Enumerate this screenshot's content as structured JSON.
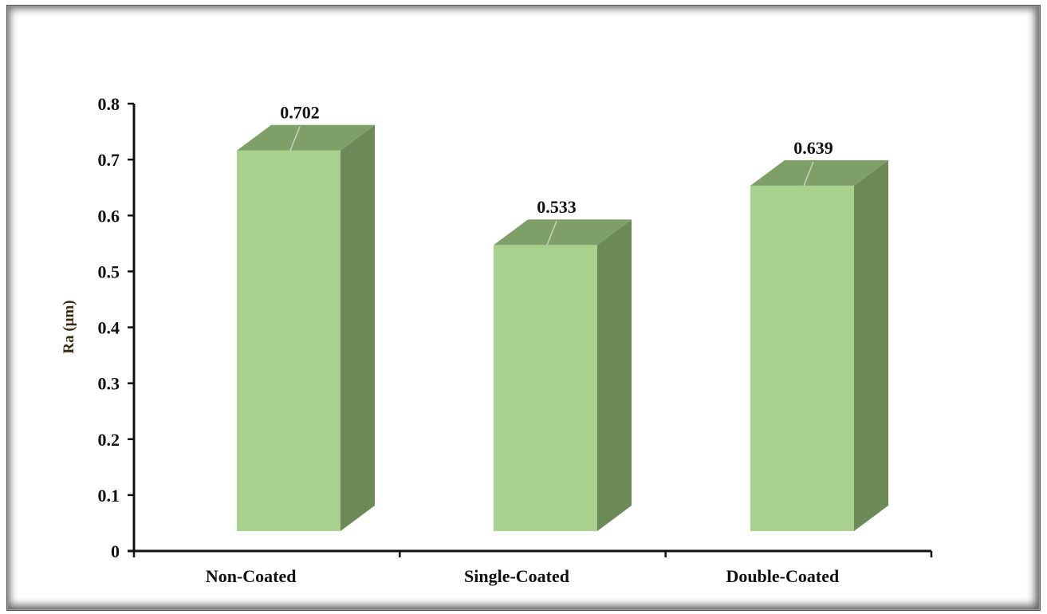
{
  "chart_data": {
    "type": "bar",
    "style": "3d-column",
    "title": "",
    "xlabel": "",
    "ylabel": "Ra (μm)",
    "categories": [
      "Non-Coated",
      "Single-Coated",
      "Double-Coated"
    ],
    "values": [
      0.702,
      0.533,
      0.639
    ],
    "data_labels": [
      "0.702",
      "0.533",
      "0.639"
    ],
    "ylim": [
      0,
      0.8
    ],
    "yticks": [
      "0",
      "0.1",
      "0.2",
      "0.3",
      "0.4",
      "0.5",
      "0.6",
      "0.7",
      "0.8"
    ],
    "grid": false,
    "legend": null,
    "colors": {
      "bar_front": "#a9d18e",
      "bar_top": "#7f9f68",
      "bar_side": "#6b8a58",
      "axis": "#111111",
      "ylabel": "#3a2a10"
    }
  }
}
